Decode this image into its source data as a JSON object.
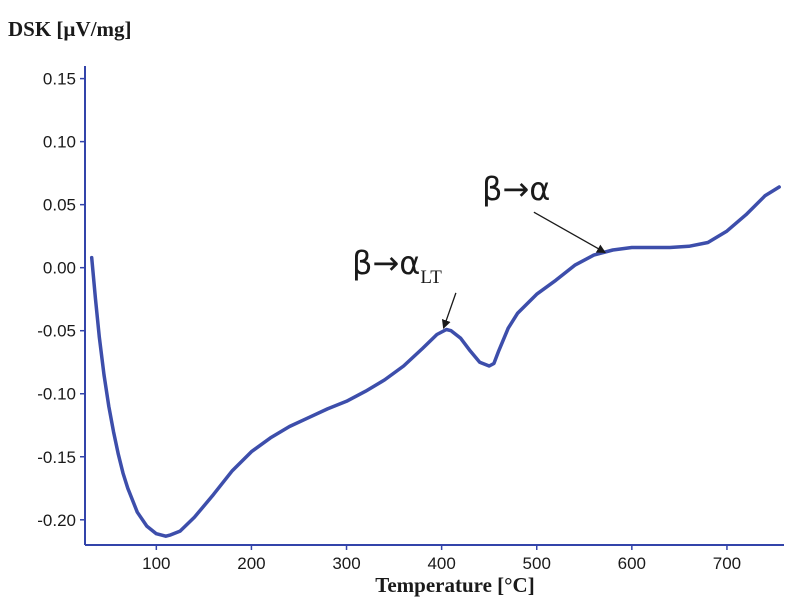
{
  "chart_data": {
    "type": "line",
    "ylabel": "DSK [µV/mg]",
    "xlabel": "Temperature [°C]",
    "xlim": [
      25,
      760
    ],
    "ylim": [
      -0.22,
      0.16
    ],
    "x_ticks": [
      100,
      200,
      300,
      400,
      500,
      600,
      700
    ],
    "x_tick_labels": [
      "100",
      "200",
      "300",
      "400",
      "500",
      "600",
      "700"
    ],
    "y_ticks": [
      -0.2,
      -0.15,
      -0.1,
      -0.05,
      0.0,
      0.05,
      0.1,
      0.15
    ],
    "y_tick_labels": [
      "-0.20",
      "-0.15",
      "-0.10",
      "-0.05",
      "0.00",
      "0.05",
      "0.10",
      "0.15"
    ],
    "grid": false,
    "series_color": "#3d4eab",
    "series": [
      {
        "x": [
          32,
          36,
          40,
          45,
          50,
          55,
          60,
          65,
          70,
          80,
          90,
          100,
          110,
          115,
          125,
          140,
          160,
          180,
          200,
          220,
          240,
          260,
          280,
          300,
          320,
          340,
          360,
          380,
          395,
          405,
          410,
          420,
          430,
          440,
          450,
          455,
          460,
          470,
          480,
          500,
          520,
          540,
          560,
          580,
          600,
          620,
          640,
          660,
          680,
          700,
          720,
          740,
          755
        ],
        "y": [
          0.008,
          -0.025,
          -0.055,
          -0.085,
          -0.11,
          -0.13,
          -0.148,
          -0.163,
          -0.175,
          -0.194,
          -0.205,
          -0.211,
          -0.213,
          -0.212,
          -0.209,
          -0.198,
          -0.18,
          -0.161,
          -0.146,
          -0.135,
          -0.126,
          -0.119,
          -0.112,
          -0.106,
          -0.098,
          -0.089,
          -0.078,
          -0.064,
          -0.053,
          -0.049,
          -0.05,
          -0.056,
          -0.066,
          -0.075,
          -0.078,
          -0.076,
          -0.066,
          -0.048,
          -0.036,
          -0.021,
          -0.01,
          0.002,
          0.01,
          0.014,
          0.016,
          0.016,
          0.016,
          0.017,
          0.02,
          0.029,
          0.042,
          0.057,
          0.064
        ]
      }
    ],
    "annotations": [
      {
        "text": "β→α",
        "subscript": "LT",
        "arrow_from": [
          415,
          -0.02
        ],
        "arrow_to": [
          402,
          -0.048
        ]
      },
      {
        "text": "β→α",
        "subscript": "",
        "arrow_from": [
          497,
          0.044
        ],
        "arrow_to": [
          572,
          0.012
        ]
      }
    ]
  }
}
